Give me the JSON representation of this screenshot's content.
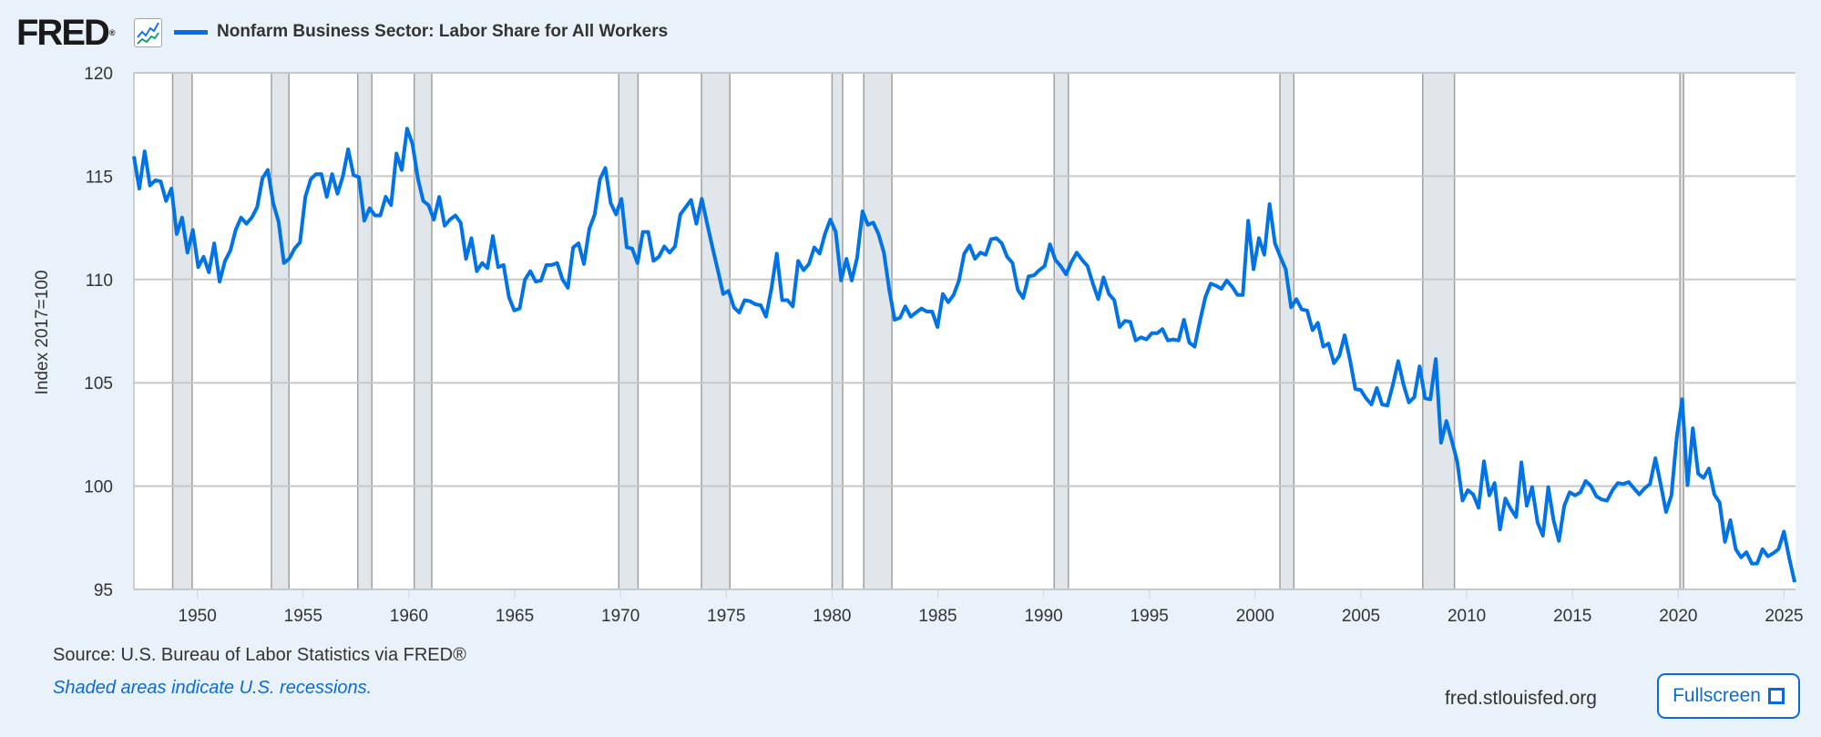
{
  "header": {
    "logo_text": "FRED",
    "logo_reg": "®",
    "series_title": "Nonfarm Business Sector: Labor Share for All Workers"
  },
  "footer": {
    "source": "Source: U.S. Bureau of Labor Statistics via FRED®",
    "note": "Shaded areas indicate U.S. recessions.",
    "site": "fred.stlouisfed.org",
    "fullscreen_label": "Fullscreen"
  },
  "colors": {
    "line": "#0073e6",
    "recession_fill": "#e1e6eb",
    "recession_edge": "#a0a0a0",
    "grid": "#c8c8c8",
    "background": "#e9f1fa"
  },
  "chart_data": {
    "type": "line",
    "title": "Nonfarm Business Sector: Labor Share for All Workers",
    "xlabel": "",
    "ylabel": "Index 2017=100",
    "frequency": "quarterly",
    "xlim": [
      1947.0,
      2025.54
    ],
    "ylim": [
      95,
      120
    ],
    "x_ticks": [
      1950,
      1955,
      1960,
      1965,
      1970,
      1975,
      1980,
      1985,
      1990,
      1995,
      2000,
      2005,
      2010,
      2015,
      2020,
      2025
    ],
    "y_ticks": [
      95,
      100,
      105,
      110,
      115,
      120
    ],
    "grid": true,
    "legend_position": "top-left",
    "recessions": [
      [
        1948.83,
        1949.75
      ],
      [
        1953.5,
        1954.33
      ],
      [
        1957.58,
        1958.25
      ],
      [
        1960.25,
        1961.08
      ],
      [
        1969.92,
        1970.83
      ],
      [
        1973.83,
        1975.17
      ],
      [
        1980.0,
        1980.5
      ],
      [
        1981.5,
        1982.83
      ],
      [
        1990.5,
        1991.17
      ],
      [
        2001.17,
        2001.83
      ],
      [
        2007.92,
        2009.42
      ],
      [
        2020.08,
        2020.25
      ]
    ],
    "series": [
      {
        "name": "Nonfarm Business Sector: Labor Share for All Workers",
        "x_start": 1947.0,
        "x_end": 2025.5,
        "values": [
          115.96,
          114.4,
          116.2,
          114.55,
          114.8,
          114.75,
          113.8,
          114.4,
          112.2,
          113.0,
          111.3,
          112.4,
          110.6,
          111.1,
          110.35,
          111.75,
          109.9,
          110.9,
          111.4,
          112.4,
          113.0,
          112.7,
          113.0,
          113.5,
          114.9,
          115.3,
          113.7,
          112.8,
          110.8,
          111.0,
          111.5,
          111.8,
          114.0,
          114.85,
          115.1,
          115.1,
          114.0,
          115.1,
          114.15,
          115.0,
          116.3,
          115.05,
          114.95,
          112.85,
          113.45,
          113.1,
          113.1,
          114.0,
          113.6,
          116.1,
          115.3,
          117.3,
          116.55,
          114.9,
          113.8,
          113.6,
          112.9,
          114.0,
          112.6,
          112.9,
          113.1,
          112.75,
          111.0,
          112.0,
          110.4,
          110.8,
          110.55,
          112.1,
          110.6,
          110.7,
          109.15,
          108.5,
          108.6,
          110.0,
          110.4,
          109.9,
          109.95,
          110.7,
          110.7,
          110.8,
          110.0,
          109.6,
          111.55,
          111.75,
          110.75,
          112.45,
          113.15,
          114.85,
          115.4,
          113.7,
          113.15,
          113.9,
          111.55,
          111.5,
          110.8,
          112.3,
          112.3,
          110.9,
          111.1,
          111.6,
          111.3,
          111.6,
          113.15,
          113.5,
          113.85,
          112.7,
          113.9,
          112.7,
          111.55,
          110.45,
          109.3,
          109.45,
          108.65,
          108.4,
          109.0,
          108.95,
          108.8,
          108.75,
          108.2,
          109.55,
          111.25,
          109.0,
          109.0,
          108.7,
          110.9,
          110.45,
          110.75,
          111.55,
          111.25,
          112.2,
          112.9,
          112.3,
          109.95,
          111.0,
          109.95,
          111.05,
          113.3,
          112.65,
          112.75,
          112.2,
          111.3,
          109.5,
          108.05,
          108.15,
          108.7,
          108.2,
          108.4,
          108.6,
          108.45,
          108.45,
          107.7,
          109.3,
          108.9,
          109.25,
          109.95,
          111.25,
          111.65,
          111.0,
          111.3,
          111.2,
          111.95,
          112.0,
          111.75,
          111.1,
          110.8,
          109.5,
          109.1,
          110.15,
          110.2,
          110.45,
          110.65,
          111.7,
          110.95,
          110.65,
          110.25,
          110.85,
          111.3,
          110.95,
          110.65,
          109.8,
          109.05,
          110.1,
          109.3,
          109.0,
          107.7,
          108.0,
          107.95,
          107.05,
          107.2,
          107.1,
          107.4,
          107.4,
          107.6,
          107.05,
          107.1,
          107.05,
          108.05,
          106.95,
          106.75,
          108.0,
          109.15,
          109.8,
          109.7,
          109.55,
          109.95,
          109.65,
          109.25,
          109.25,
          112.85,
          110.5,
          112.0,
          111.2,
          113.65,
          111.75,
          111.1,
          110.5,
          108.65,
          109.05,
          108.55,
          108.5,
          107.55,
          107.9,
          106.75,
          106.9,
          105.95,
          106.3,
          107.3,
          106.1,
          104.7,
          104.65,
          104.25,
          103.95,
          104.75,
          103.95,
          103.9,
          104.9,
          106.05,
          104.9,
          104.05,
          104.3,
          105.8,
          104.25,
          104.2,
          106.15,
          102.1,
          103.15,
          102.2,
          101.2,
          99.3,
          99.8,
          99.6,
          98.95,
          101.2,
          99.55,
          100.15,
          97.9,
          99.4,
          98.9,
          98.5,
          101.15,
          99.05,
          99.95,
          98.25,
          97.6,
          99.95,
          98.35,
          97.35,
          99.05,
          99.7,
          99.55,
          99.7,
          100.25,
          100.0,
          99.5,
          99.35,
          99.3,
          99.8,
          100.15,
          100.1,
          100.2,
          99.9,
          99.6,
          99.9,
          100.1,
          101.35,
          100.1,
          98.75,
          99.55,
          102.4,
          104.2,
          100.05,
          102.8,
          100.6,
          100.4,
          100.85,
          99.6,
          99.2,
          97.3,
          98.35,
          96.95,
          96.55,
          96.8,
          96.25,
          96.25,
          96.95,
          96.6,
          96.75,
          96.95,
          97.8,
          96.5,
          95.35
        ]
      }
    ]
  }
}
